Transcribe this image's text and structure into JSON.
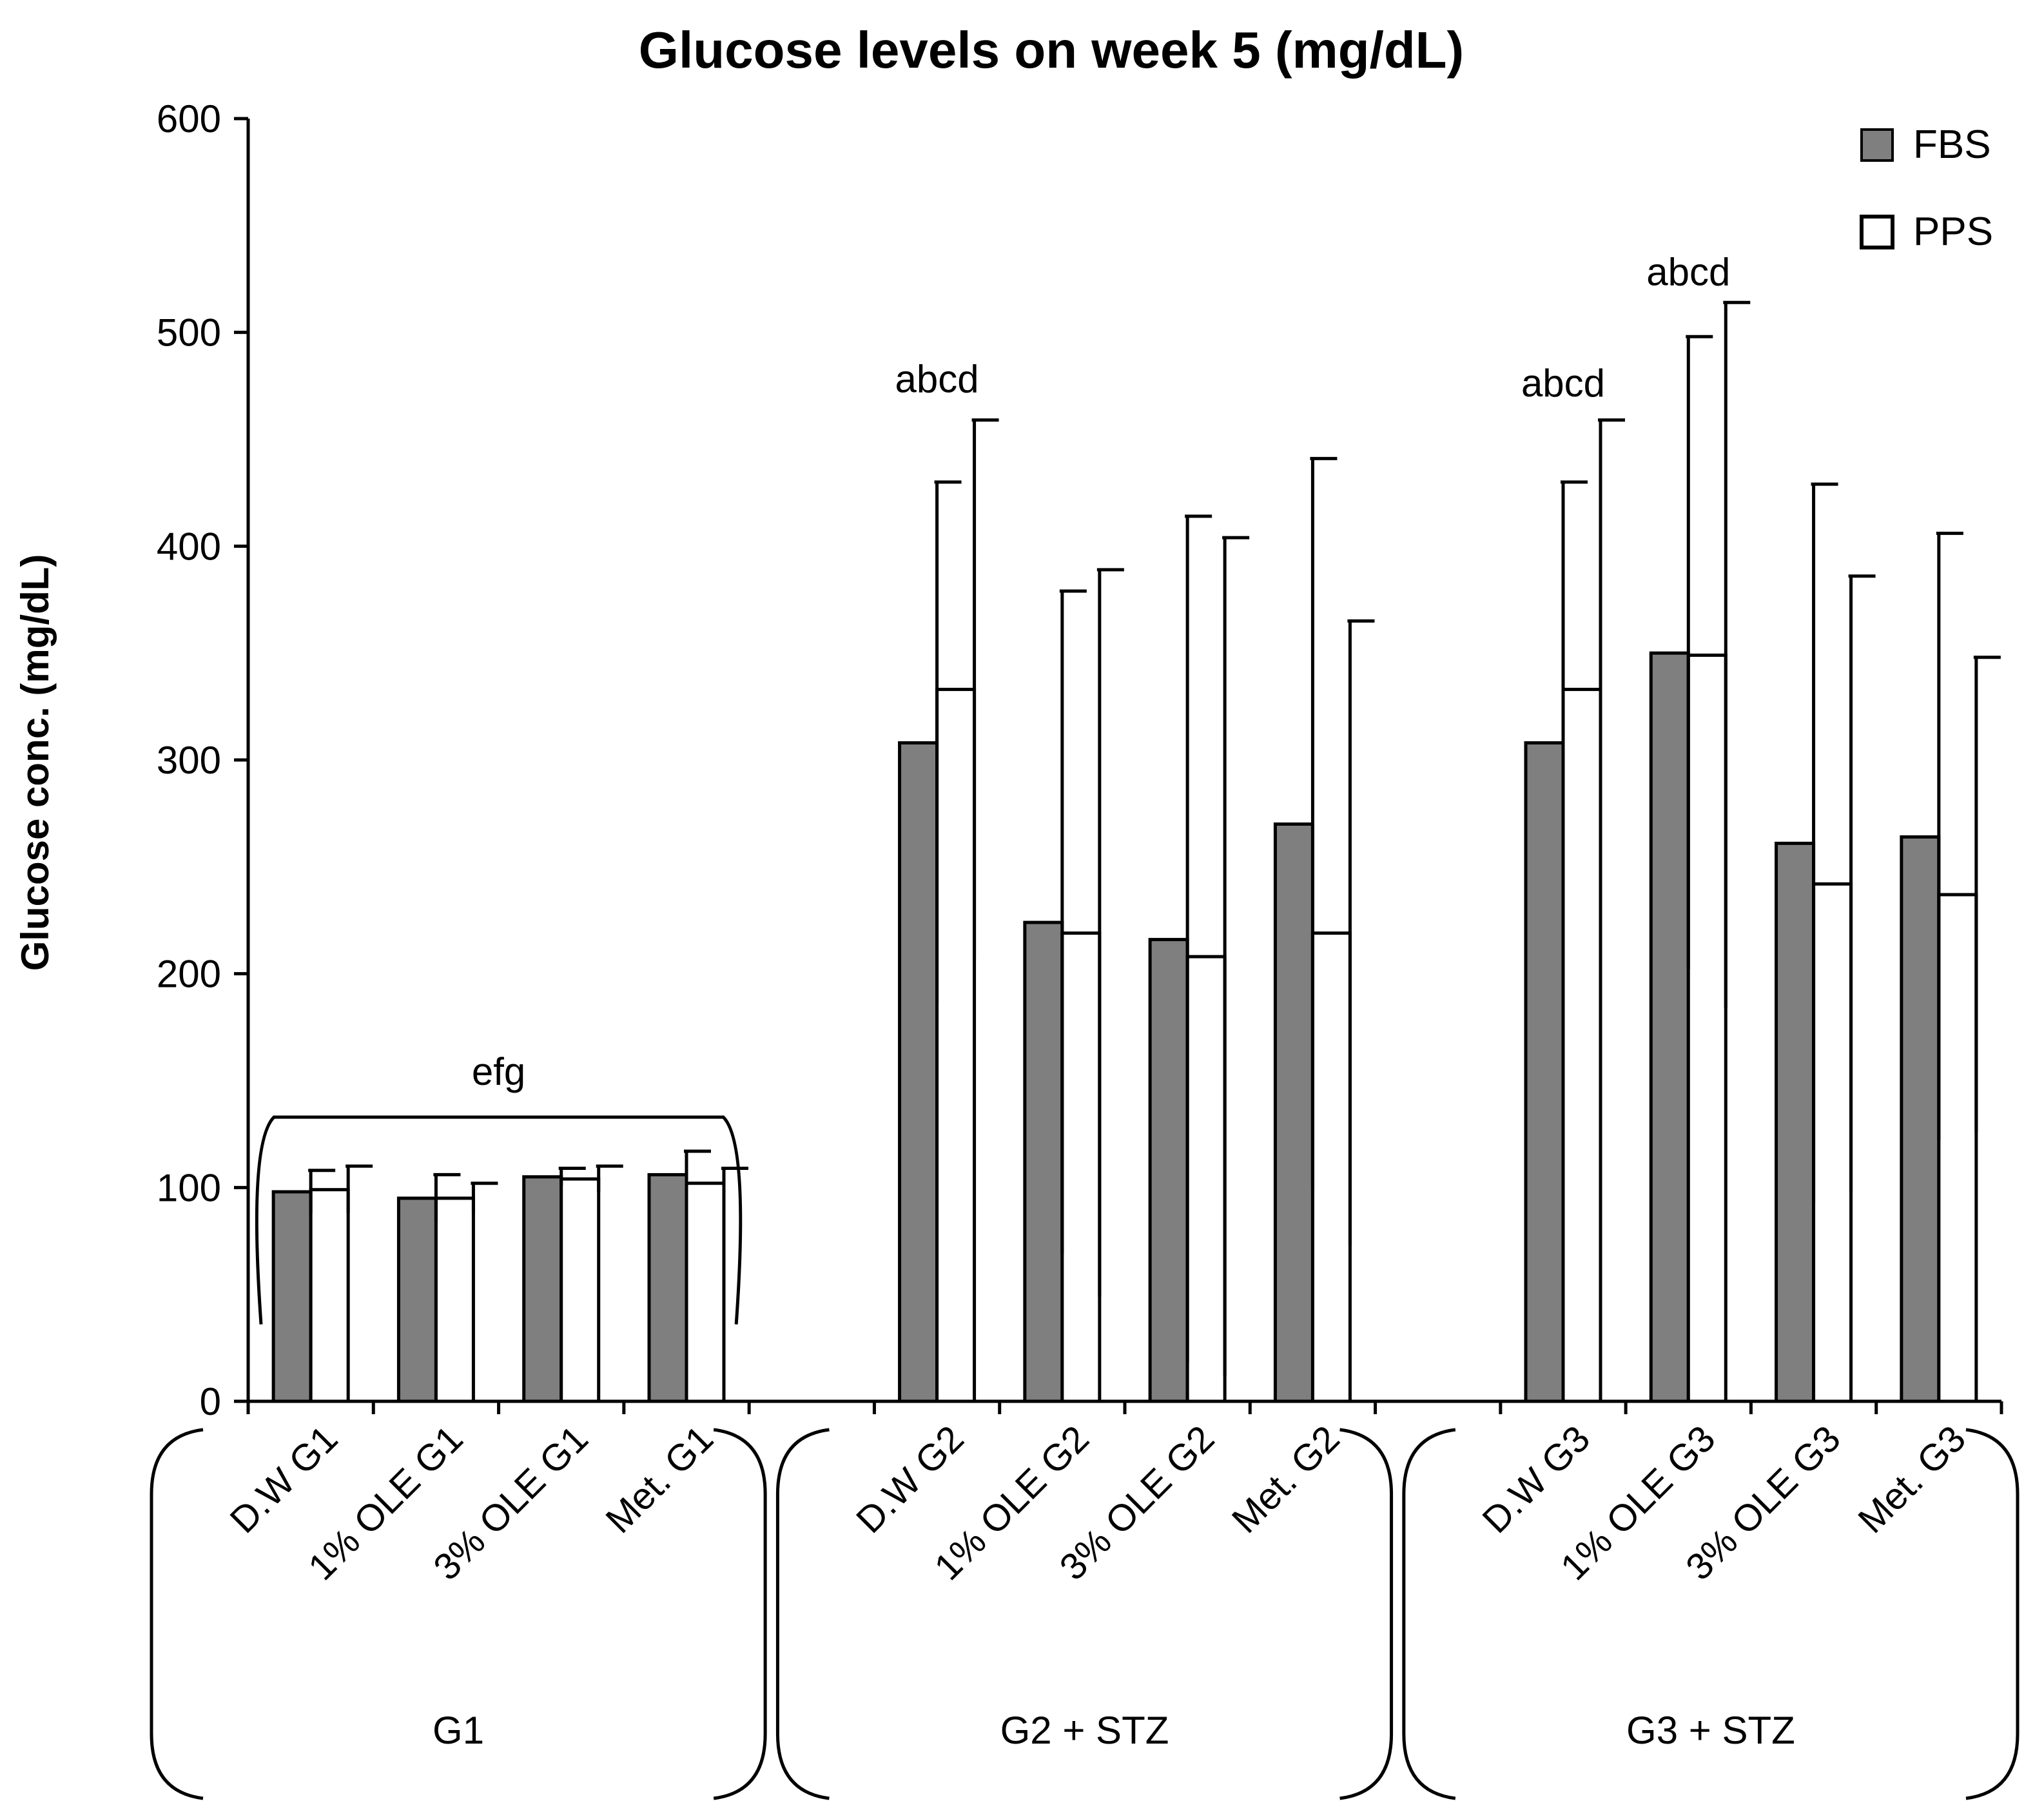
{
  "chart_data": {
    "type": "bar",
    "title": "Glucose levels on week 5 (mg/dL)",
    "ylabel": "Glucose conc. (mg/dL)",
    "xlabel": "",
    "ylim": [
      0,
      600
    ],
    "yticks": [
      0,
      100,
      200,
      300,
      400,
      500,
      600
    ],
    "grid": false,
    "legend_position": "top-right",
    "colors": {
      "FBS": "#7f7f7f",
      "PPS": "#ffffff",
      "outline": "#000000"
    },
    "categories": [
      "D.W G1",
      "1% OLE G1",
      "3% OLE G1",
      "Met. G1",
      "",
      "D.W G2",
      "1% OLE G2",
      "3% OLE G2",
      "Met. G2",
      "",
      "D.W G3",
      "1% OLE G3",
      "3% OLE G3",
      "Met. G3"
    ],
    "series": [
      {
        "name": "FBS",
        "values": [
          98,
          95,
          105,
          106,
          null,
          308,
          224,
          216,
          270,
          null,
          308,
          350,
          261,
          264
        ],
        "errors": [
          10,
          11,
          4,
          11,
          null,
          122,
          155,
          198,
          171,
          null,
          122,
          148,
          168,
          142
        ]
      },
      {
        "name": "PPS",
        "values": [
          99,
          95,
          104,
          102,
          null,
          333,
          219,
          208,
          219,
          null,
          333,
          349,
          242,
          237
        ],
        "errors": [
          11,
          7,
          6,
          7,
          null,
          126,
          170,
          196,
          146,
          null,
          126,
          165,
          144,
          111
        ]
      }
    ],
    "groups": [
      {
        "label": "G1",
        "categories": [
          0,
          3
        ]
      },
      {
        "label": "G2 + STZ",
        "categories": [
          5,
          8
        ]
      },
      {
        "label": "G3 + STZ",
        "categories": [
          10,
          13
        ]
      }
    ],
    "annotations": [
      {
        "text": "efg",
        "category": 1.5,
        "y": 148,
        "bracket": true,
        "bracket_range": [
          0,
          3
        ]
      },
      {
        "text": "abcd",
        "category": 5,
        "y": 472
      },
      {
        "text": "abcd",
        "category": 10,
        "y": 470
      },
      {
        "text": "abcd",
        "category": 11,
        "y": 522
      }
    ]
  }
}
